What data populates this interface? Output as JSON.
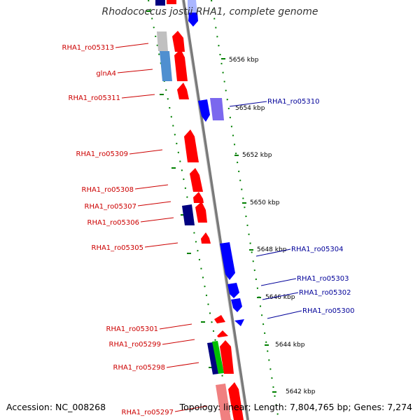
{
  "title": "Rhodococcus jostii RHA1, complete genome",
  "footer": {
    "accession": "Accession: NC_008268",
    "summary": "Topology: linear; Length: 7,804,765 bp; Genes: 7,274"
  },
  "colors": {
    "forward_gene": "#ff0000",
    "reverse_gene": "#0000ff",
    "backbone": "#808080",
    "ticks": "#008000",
    "forward_label": "#cc0000",
    "reverse_label": "#000099"
  },
  "scale_labels": [
    "5656 kbp",
    "5654 kbp",
    "5652 kbp",
    "5650 kbp",
    "5648 kbp",
    "5646 kbp",
    "5644 kbp",
    "5642 kbp"
  ],
  "forward_genes": [
    "RHA1_ro05313",
    "glnA4",
    "RHA1_ro05311",
    "RHA1_ro05309",
    "RHA1_ro05308",
    "RHA1_ro05307",
    "RHA1_ro05306",
    "RHA1_ro05305",
    "RHA1_ro05301",
    "RHA1_ro05299",
    "RHA1_ro05298",
    "RHA1_ro05297"
  ],
  "reverse_genes": [
    "RHA1_ro05310",
    "RHA1_ro05304",
    "RHA1_ro05303",
    "RHA1_ro05302",
    "RHA1_ro05300"
  ]
}
